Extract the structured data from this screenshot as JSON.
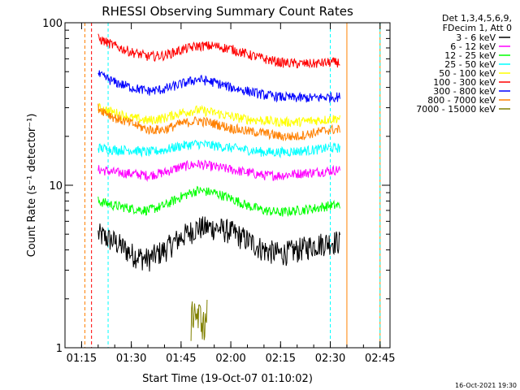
{
  "chart_data": {
    "type": "line",
    "title": "RHESSI Observing Summary Count Rates",
    "xlabel": "Start Time (19-Oct-07 01:10:02)",
    "ylabel": "Count Rate (s⁻¹ detector⁻¹)",
    "y_scale": "log",
    "ylim": [
      1,
      100
    ],
    "xlim": [
      "01:10",
      "02:48"
    ],
    "x_ticks": [
      "01:15",
      "01:30",
      "01:45",
      "02:00",
      "02:15",
      "02:30",
      "02:45"
    ],
    "y_ticks": [
      "1",
      "10",
      "100"
    ],
    "legend_header": [
      "Det 1,3,4,5,6,9,",
      "FDecim 1, Att 0"
    ],
    "legend_position": "right",
    "timestamp": "16-Oct-2021 19:30",
    "grid": false,
    "series": [
      {
        "name": "3 - 6 keV",
        "color": "#000000",
        "x": [
          "01:20",
          "01:25",
          "01:30",
          "01:35",
          "01:40",
          "01:45",
          "01:50",
          "01:55",
          "02:00",
          "02:05",
          "02:10",
          "02:15",
          "02:20",
          "02:25",
          "02:30",
          "02:33"
        ],
        "y": [
          5.0,
          4.5,
          3.8,
          3.5,
          4.0,
          4.8,
          5.5,
          5.5,
          5.2,
          4.6,
          4.0,
          3.8,
          4.0,
          4.3,
          4.5,
          4.5
        ]
      },
      {
        "name": "6 - 12 keV",
        "color": "#ff00ff",
        "x": [
          "01:20",
          "01:25",
          "01:30",
          "01:35",
          "01:40",
          "01:45",
          "01:50",
          "01:55",
          "02:00",
          "02:05",
          "02:10",
          "02:15",
          "02:20",
          "02:25",
          "02:30",
          "02:33"
        ],
        "y": [
          12.5,
          12.0,
          11.8,
          11.5,
          12.0,
          13.0,
          13.5,
          13.0,
          12.5,
          12.0,
          11.5,
          11.5,
          11.8,
          12.0,
          12.3,
          12.5
        ]
      },
      {
        "name": "12 - 25 keV",
        "color": "#00ff00",
        "x": [
          "01:20",
          "01:25",
          "01:30",
          "01:35",
          "01:40",
          "01:45",
          "01:50",
          "01:55",
          "02:00",
          "02:05",
          "02:10",
          "02:15",
          "02:20",
          "02:25",
          "02:30",
          "02:33"
        ],
        "y": [
          8.0,
          7.5,
          7.2,
          7.0,
          7.5,
          8.5,
          9.3,
          9.0,
          8.3,
          7.5,
          7.0,
          6.8,
          7.0,
          7.2,
          7.5,
          7.5
        ]
      },
      {
        "name": "25 - 50 keV",
        "color": "#00ffff",
        "x": [
          "01:20",
          "01:25",
          "01:30",
          "01:35",
          "01:40",
          "01:45",
          "01:50",
          "01:55",
          "02:00",
          "02:05",
          "02:10",
          "02:15",
          "02:20",
          "02:25",
          "02:30",
          "02:33"
        ],
        "y": [
          17.0,
          16.5,
          16.5,
          16.0,
          16.5,
          17.5,
          18.0,
          17.5,
          17.0,
          16.5,
          16.0,
          16.0,
          16.2,
          16.5,
          17.0,
          17.0
        ]
      },
      {
        "name": "50 - 100 keV",
        "color": "#ffff00",
        "x": [
          "01:20",
          "01:25",
          "01:30",
          "01:35",
          "01:40",
          "01:45",
          "01:50",
          "01:55",
          "02:00",
          "02:05",
          "02:10",
          "02:15",
          "02:20",
          "02:25",
          "02:30",
          "02:33"
        ],
        "y": [
          30.0,
          28.0,
          26.0,
          25.0,
          26.0,
          28.0,
          29.0,
          28.0,
          26.5,
          25.5,
          25.0,
          24.5,
          24.5,
          25.0,
          25.5,
          26.0
        ]
      },
      {
        "name": "100 - 300 keV",
        "color": "#ff0000",
        "x": [
          "01:20",
          "01:25",
          "01:30",
          "01:35",
          "01:40",
          "01:45",
          "01:50",
          "01:55",
          "02:00",
          "02:05",
          "02:10",
          "02:15",
          "02:20",
          "02:25",
          "02:30",
          "02:33"
        ],
        "y": [
          80.0,
          72.0,
          66.0,
          62.0,
          63.0,
          68.0,
          72.0,
          72.0,
          69.0,
          64.0,
          60.0,
          57.0,
          56.0,
          56.0,
          57.0,
          57.0
        ]
      },
      {
        "name": "300 - 800 keV",
        "color": "#0000ff",
        "x": [
          "01:20",
          "01:25",
          "01:30",
          "01:35",
          "01:40",
          "01:45",
          "01:50",
          "01:55",
          "02:00",
          "02:05",
          "02:10",
          "02:15",
          "02:20",
          "02:25",
          "02:30",
          "02:33"
        ],
        "y": [
          48.0,
          43.0,
          40.0,
          38.0,
          39.0,
          42.0,
          45.0,
          43.0,
          40.0,
          38.0,
          36.0,
          35.0,
          34.5,
          34.5,
          35.0,
          35.0
        ]
      },
      {
        "name": "800 - 7000 keV",
        "color": "#ff8000",
        "x": [
          "01:20",
          "01:25",
          "01:30",
          "01:35",
          "01:40",
          "01:45",
          "01:50",
          "01:55",
          "02:00",
          "02:05",
          "02:10",
          "02:15",
          "02:20",
          "02:25",
          "02:30",
          "02:33"
        ],
        "y": [
          30.0,
          26.0,
          24.0,
          22.0,
          22.0,
          24.0,
          25.0,
          24.0,
          22.5,
          21.5,
          21.0,
          20.0,
          20.0,
          21.0,
          22.0,
          22.0
        ]
      },
      {
        "name": "7000 - 15000 keV",
        "color": "#808000",
        "x": [
          "01:48",
          "01:49",
          "01:50",
          "01:51",
          "01:52",
          "01:53"
        ],
        "y": [
          1.4,
          1.8,
          1.5,
          1.6,
          1.3,
          1.7
        ]
      }
    ],
    "attenuator_markers": [
      {
        "color": "#ff8000",
        "x": [
          "01:16",
          "02:35",
          "02:45"
        ]
      },
      {
        "color": "#00ffff",
        "x": [
          "01:23",
          "02:30",
          "02:45"
        ]
      },
      {
        "color": "#ff0000",
        "x": [
          "01:18"
        ]
      }
    ],
    "colors": {
      "axis": "#000000",
      "background": "#ffffff"
    }
  }
}
